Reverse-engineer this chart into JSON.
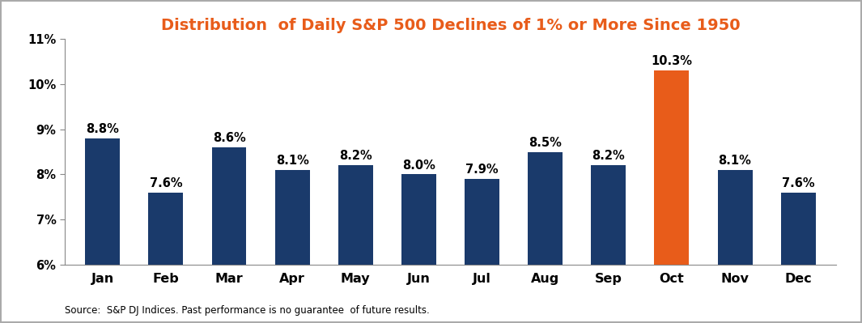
{
  "title": "Distribution  of Daily S&P 500 Declines of 1% or More Since 1950",
  "categories": [
    "Jan",
    "Feb",
    "Mar",
    "Apr",
    "May",
    "Jun",
    "Jul",
    "Aug",
    "Sep",
    "Oct",
    "Nov",
    "Dec"
  ],
  "values": [
    8.8,
    7.6,
    8.6,
    8.1,
    8.2,
    8.0,
    7.9,
    8.5,
    8.2,
    10.3,
    8.1,
    7.6
  ],
  "bar_colors": [
    "#1a3a6b",
    "#1a3a6b",
    "#1a3a6b",
    "#1a3a6b",
    "#1a3a6b",
    "#1a3a6b",
    "#1a3a6b",
    "#1a3a6b",
    "#1a3a6b",
    "#e85c1a",
    "#1a3a6b",
    "#1a3a6b"
  ],
  "ylim": [
    6,
    11
  ],
  "yticks": [
    6,
    7,
    8,
    9,
    10,
    11
  ],
  "ytick_labels": [
    "6%",
    "7%",
    "8%",
    "9%",
    "10%",
    "11%"
  ],
  "title_color": "#e85c1a",
  "title_fontsize": 14,
  "label_fontsize": 10.5,
  "source_text": "Source:  S&P DJ Indices. Past performance is no guarantee  of future results.",
  "background_color": "#ffffff",
  "outer_border_color": "#aaaaaa",
  "axis_bg_color": "#ffffff"
}
